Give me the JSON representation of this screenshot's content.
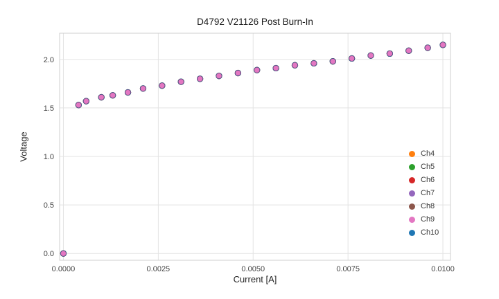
{
  "chart_data": {
    "type": "scatter",
    "title": "D4792 V21126 Post Burn-In",
    "xlabel": "Current [A]",
    "ylabel": "Voltage",
    "xlim": [
      -0.0001,
      0.0102
    ],
    "ylim": [
      -0.07,
      2.27
    ],
    "grid": true,
    "legend_position": "lower right",
    "xticks": {
      "values": [
        0.0,
        0.0025,
        0.005,
        0.0075,
        0.01
      ],
      "labels": [
        "0.0000",
        "0.0025",
        "0.0050",
        "0.0075",
        "0.0100"
      ]
    },
    "yticks": {
      "values": [
        0.0,
        0.5,
        1.0,
        1.5,
        2.0
      ],
      "labels": [
        "0.0",
        "0.5",
        "1.0",
        "1.5",
        "2.0"
      ]
    },
    "x": [
      0.0,
      0.0004,
      0.0006,
      0.001,
      0.0013,
      0.0017,
      0.0021,
      0.0026,
      0.0031,
      0.0036,
      0.0041,
      0.0046,
      0.0051,
      0.0056,
      0.0061,
      0.0066,
      0.0071,
      0.0076,
      0.0081,
      0.0086,
      0.0091,
      0.0096,
      0.01
    ],
    "y": [
      0.0,
      1.53,
      1.57,
      1.61,
      1.63,
      1.66,
      1.7,
      1.73,
      1.77,
      1.8,
      1.83,
      1.86,
      1.89,
      1.91,
      1.94,
      1.96,
      1.98,
      2.01,
      2.04,
      2.06,
      2.09,
      2.12,
      2.15
    ],
    "series_overlap": true,
    "top_series": "Ch9",
    "series": [
      {
        "name": "Ch4",
        "color": "#ff7f0e"
      },
      {
        "name": "Ch5",
        "color": "#2ca02c"
      },
      {
        "name": "Ch6",
        "color": "#d62728"
      },
      {
        "name": "Ch7",
        "color": "#9467bd"
      },
      {
        "name": "Ch8",
        "color": "#8c564b"
      },
      {
        "name": "Ch9",
        "color": "#e377c2"
      },
      {
        "name": "Ch10",
        "color": "#1f77b4"
      }
    ],
    "style": {
      "grid_color": "#e3e3e3",
      "spine_color": "#cfcfcf",
      "tick_text_color": "#444444"
    }
  }
}
